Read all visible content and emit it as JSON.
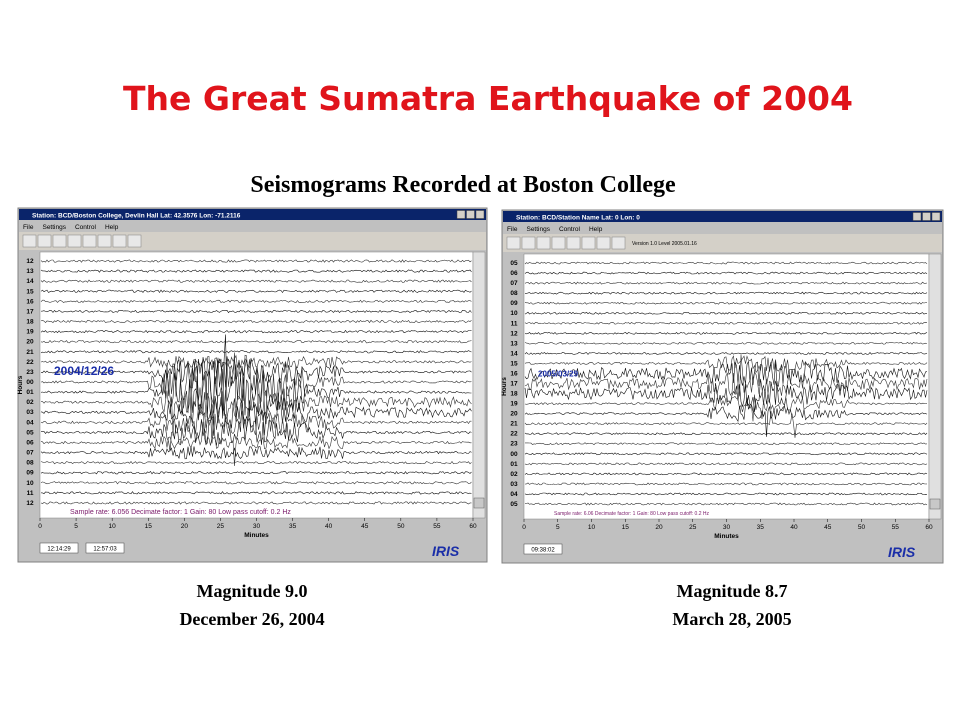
{
  "title": "The Great Sumatra Earthquake of 2004",
  "subtitle": "Seismograms Recorded at Boston College",
  "panels": [
    {
      "window_title": "Station: BCD/Boston College, Devlin Hall Lat: 42.3576 Lon: -71.2116",
      "menu": [
        "File",
        "Settings",
        "Control",
        "Help"
      ],
      "hours_label": "Hours",
      "hours": [
        "12",
        "13",
        "14",
        "15",
        "16",
        "17",
        "18",
        "19",
        "20",
        "21",
        "22",
        "23",
        "00",
        "01",
        "02",
        "03",
        "04",
        "05",
        "06",
        "07",
        "08",
        "09",
        "10",
        "11",
        "12"
      ],
      "minutes": [
        "0",
        "5",
        "10",
        "15",
        "20",
        "25",
        "30",
        "35",
        "40",
        "45",
        "50",
        "55",
        "60"
      ],
      "minutes_label": "Minutes",
      "date": "2004/12/26",
      "status": "Sample rate: 6.056  Decimate factor: 1  Gain: 80  Low pass cutoff: 0.2 Hz",
      "times": [
        "12:14:29",
        "12:57:03"
      ],
      "logo": "IRIS",
      "caption": [
        "Magnitude 9.0",
        "December 26, 2004"
      ]
    },
    {
      "window_title": "Station: BCD/Station Name Lat: 0 Lon: 0",
      "menu": [
        "File",
        "Settings",
        "Control",
        "Help"
      ],
      "version": "Version 1.0 Level 2005.01.16",
      "hours_label": "Hours",
      "hours": [
        "05",
        "06",
        "07",
        "08",
        "09",
        "10",
        "11",
        "12",
        "13",
        "14",
        "15",
        "16",
        "17",
        "18",
        "19",
        "20",
        "21",
        "22",
        "23",
        "00",
        "01",
        "02",
        "03",
        "04",
        "05"
      ],
      "minutes": [
        "0",
        "5",
        "10",
        "15",
        "20",
        "25",
        "30",
        "35",
        "40",
        "45",
        "50",
        "55",
        "60"
      ],
      "minutes_label": "Minutes",
      "date": "2005/03/29",
      "status": "Sample rate: 6.06  Decimate factor: 1  Gain: 80  Low pass cutoff: 0.2 Hz",
      "times": [
        "09:38:02"
      ],
      "logo": "IRIS",
      "caption": [
        "Magnitude 8.7",
        "March 28, 2005"
      ]
    }
  ]
}
